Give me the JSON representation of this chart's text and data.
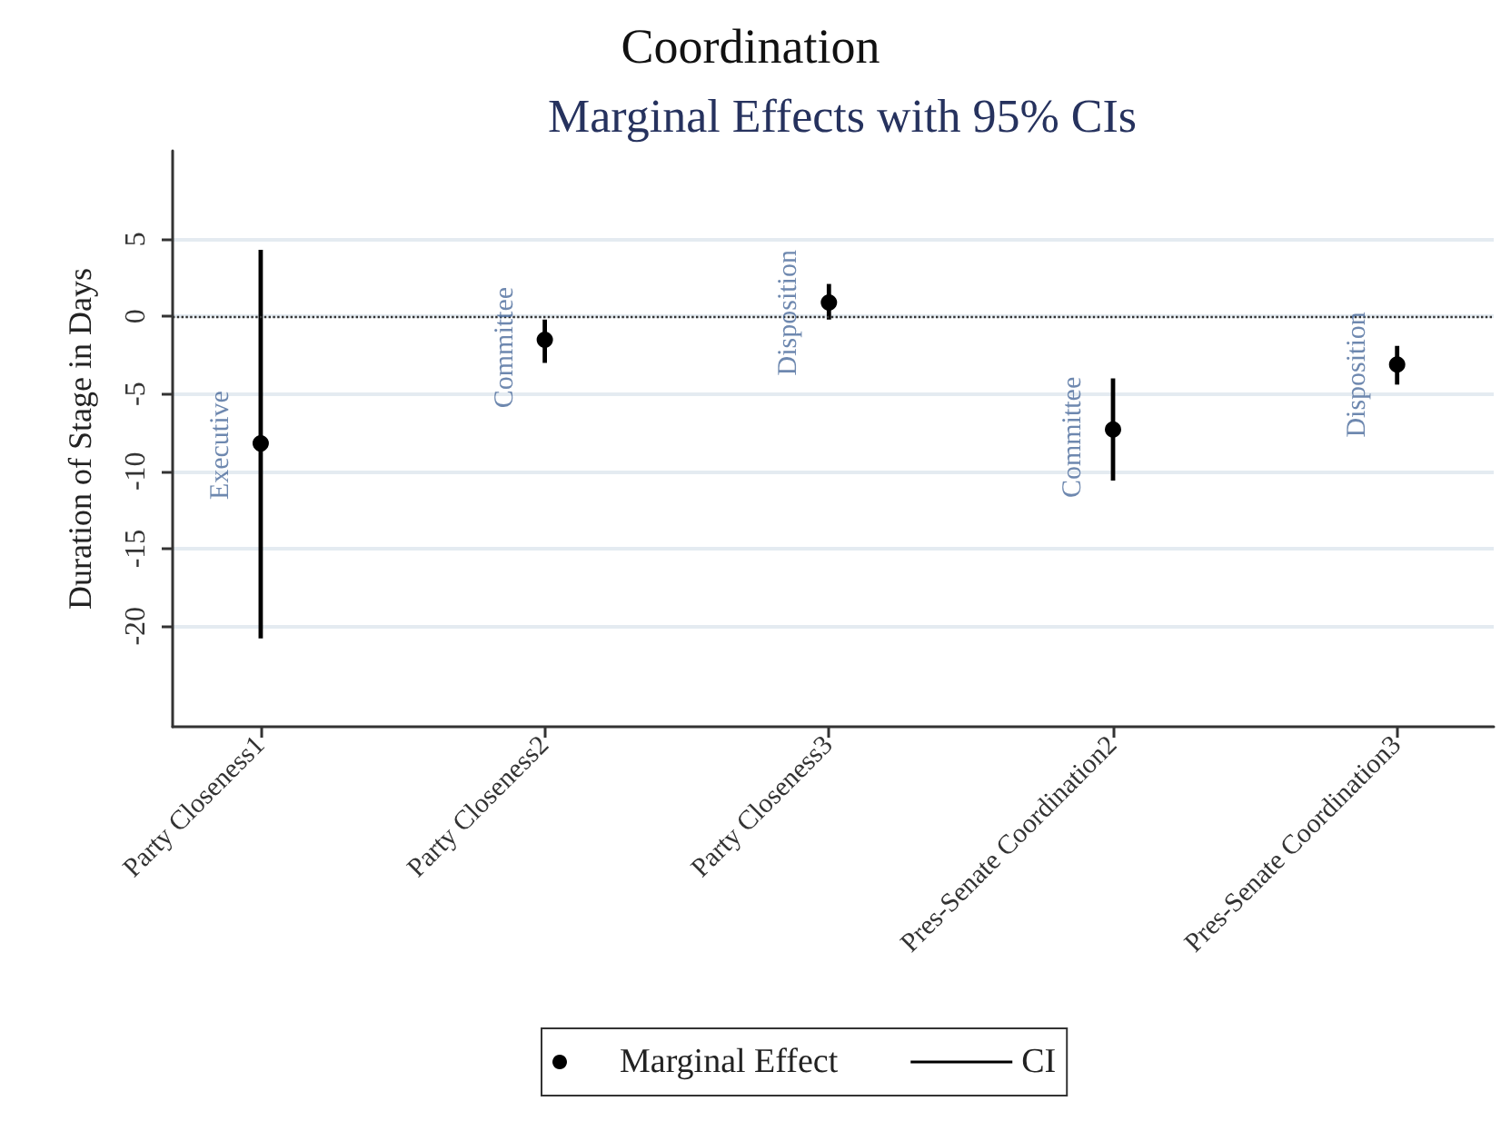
{
  "chart_data": {
    "type": "scatter",
    "title": "Coordination",
    "subtitle": "Marginal Effects with 95% CIs",
    "ylabel": "Duration of Stage in Days",
    "categories": [
      "Party Closeness1",
      "Party Closeness2",
      "Party Closeness3",
      "Pres-Senate Coordination2",
      "Pres-Senate Coordination3"
    ],
    "series": [
      {
        "name": "Marginal Effect",
        "color": "#000000",
        "values": [
          -8.2,
          -1.5,
          0.9,
          -7.3,
          -3.1
        ]
      },
      {
        "name": "CI",
        "type": "bar",
        "color": "#000000",
        "base": [
          -20.8,
          -3.0,
          -0.2,
          -10.6,
          -4.4
        ],
        "values": [
          25.1,
          2.8,
          2.3,
          6.6,
          2.5
        ]
      }
    ],
    "ylim": [
      -26.5,
      10.7
    ],
    "yticks": [
      -20,
      -15,
      -10,
      -5,
      0,
      5
    ],
    "ref_lines": [
      {
        "axis": "y",
        "value": 0,
        "line_style": "dotted",
        "color": "#333333"
      }
    ],
    "annotations": [
      {
        "text": "Executive",
        "x": "Party Closeness1",
        "y": -8.2
      },
      {
        "text": "Committee",
        "x": "Party Closeness2",
        "y": -1.5
      },
      {
        "text": "Disposition",
        "x": "Party Closeness3",
        "y": 0.9
      },
      {
        "text": "Committee",
        "x": "Pres-Senate Coordination2",
        "y": -7.3
      },
      {
        "text": "Disposition",
        "x": "Pres-Senate Coordination3",
        "y": -3.1
      }
    ],
    "grid": "y",
    "legend": "bottom",
    "marker": "circle"
  }
}
